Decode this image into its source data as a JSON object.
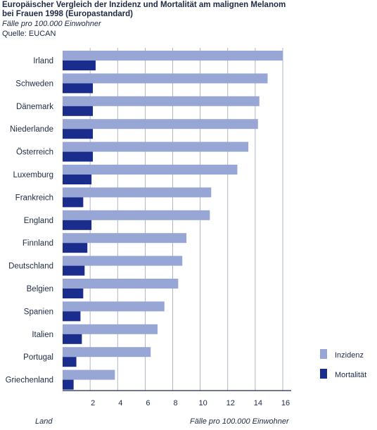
{
  "header": {
    "title_line1": "Europäischer Vergleich der Inzidenz und Mortalität am malignen Melanom",
    "title_line2": "bei Frauen 1998 (Europastandard)",
    "subtitle": "Fälle pro 100.000 Einwohner",
    "source": "Quelle: EUCAN"
  },
  "chart_data": {
    "type": "bar",
    "orientation": "horizontal",
    "categories": [
      "Irland",
      "Schweden",
      "Dänemark",
      "Niederlande",
      "Österreich",
      "Luxemburg",
      "Frankreich",
      "England",
      "Finnland",
      "Deutschland",
      "Belgien",
      "Spanien",
      "Italien",
      "Portugal",
      "Griechenland"
    ],
    "series": [
      {
        "name": "Inzidenz",
        "color": "#97a6d4",
        "values": [
          16.0,
          14.9,
          14.3,
          14.2,
          13.5,
          12.7,
          10.8,
          10.7,
          9.0,
          8.7,
          8.4,
          7.4,
          6.9,
          6.4,
          3.8
        ]
      },
      {
        "name": "Mortalität",
        "color": "#1a2d8c",
        "values": [
          2.4,
          2.2,
          2.2,
          2.2,
          2.2,
          2.1,
          1.5,
          2.1,
          1.8,
          1.6,
          1.5,
          1.3,
          1.4,
          1.0,
          0.8
        ]
      }
    ],
    "xlim": [
      0,
      16
    ],
    "x_ticks": [
      2,
      4,
      6,
      8,
      10,
      12,
      14,
      16
    ],
    "xlabel": "Fälle pro 100.000 Einwohner",
    "ylabel": "Land",
    "grid": "vertical",
    "legend_position": "right"
  }
}
